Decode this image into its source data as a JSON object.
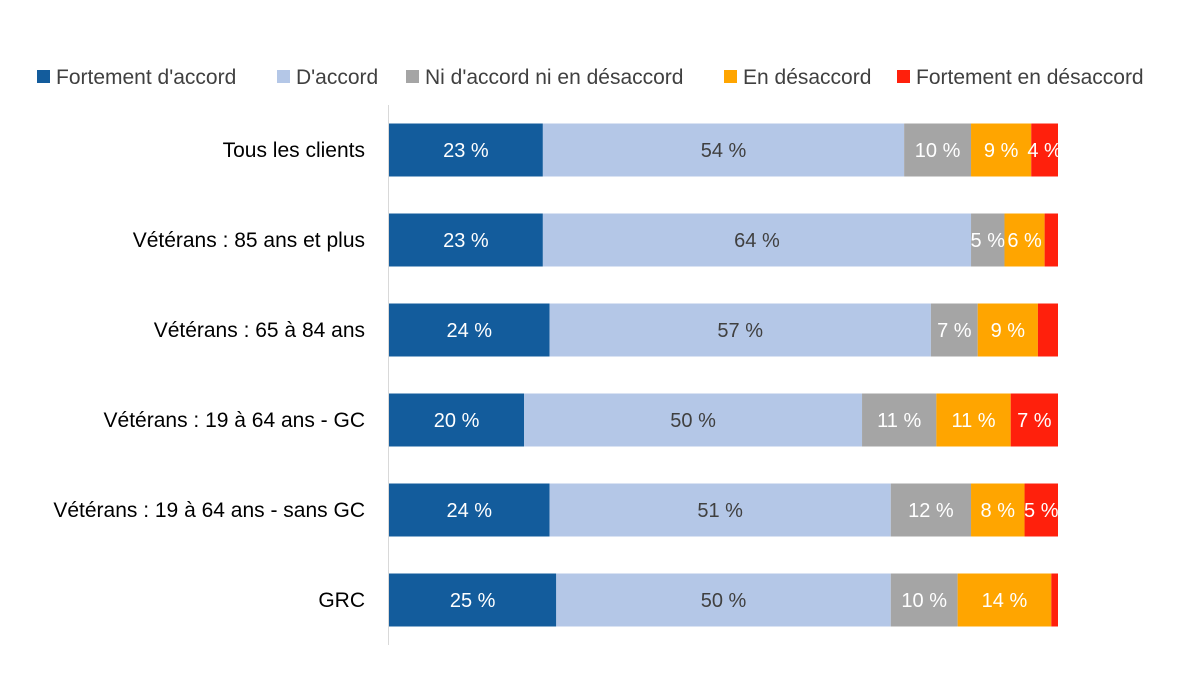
{
  "chart_data": {
    "type": "bar",
    "orientation": "horizontal",
    "stacked": true,
    "title": "",
    "xlabel": "",
    "ylabel": "",
    "xlim": [
      0,
      100
    ],
    "grid": false,
    "legend_position": "top",
    "categories": [
      "Tous les clients",
      "Vétérans : 85 ans et plus",
      "Vétérans : 65 à 84 ans",
      "Vétérans : 19 à 64 ans - GC",
      "Vétérans : 19 à 64 ans - sans GC",
      "GRC"
    ],
    "series": [
      {
        "name": "Fortement d'accord",
        "color": "#135C9C",
        "label_color": "#FFFFFF",
        "values": [
          23,
          23,
          24,
          20,
          24,
          25
        ],
        "labels": [
          "23 %",
          "23 %",
          "24 %",
          "20 %",
          "24 %",
          "25 %"
        ]
      },
      {
        "name": "D'accord",
        "color": "#B4C7E7",
        "label_color": "#404040",
        "values": [
          54,
          64,
          57,
          50,
          51,
          50
        ],
        "labels": [
          "54 %",
          "64 %",
          "57 %",
          "50 %",
          "51 %",
          "50 %"
        ]
      },
      {
        "name": "Ni d'accord ni en désaccord",
        "color": "#A5A5A5",
        "label_color": "#FFFFFF",
        "values": [
          10,
          5,
          7,
          11,
          12,
          10
        ],
        "labels": [
          "10 %",
          "5 %",
          "7 %",
          "11 %",
          "12 %",
          "10 %"
        ]
      },
      {
        "name": "En désaccord",
        "color": "#FFA500",
        "label_color": "#FFFFFF",
        "values": [
          9,
          6,
          9,
          11,
          8,
          14
        ],
        "labels": [
          "9 %",
          "6 %",
          "9 %",
          "11 %",
          "8 %",
          "14 %"
        ]
      },
      {
        "name": "Fortement en désaccord",
        "color": "#FF200C",
        "label_color": "#FFFFFF",
        "values": [
          4,
          2,
          3,
          7,
          5,
          1
        ],
        "labels": [
          "4 %",
          null,
          null,
          "7 %",
          "5 %",
          null
        ]
      }
    ]
  }
}
